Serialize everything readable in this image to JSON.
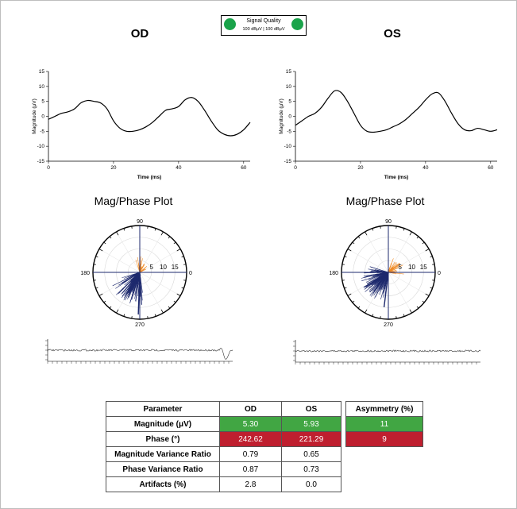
{
  "eyes": {
    "left": "OD",
    "right": "OS"
  },
  "signal_quality": {
    "label": "Signal Quality",
    "value": "100 dBμV  |  100 dBμV",
    "color": "#1aa34a"
  },
  "plot_titles": {
    "left": "Mag/Phase Plot",
    "right": "Mag/Phase Plot"
  },
  "chart_data": [
    {
      "type": "line",
      "eye": "OD",
      "xlabel": "Time (ms)",
      "ylabel": "Magnitude (μV)",
      "xlim": [
        0,
        62
      ],
      "ylim": [
        -15,
        15
      ],
      "xticks": [
        0,
        20,
        40,
        60
      ],
      "yticks": [
        15,
        10,
        5,
        0,
        -5,
        -10,
        -15
      ],
      "x": [
        0,
        2,
        4,
        6,
        8,
        10,
        12,
        14,
        16,
        18,
        20,
        22,
        24,
        26,
        28,
        30,
        32,
        34,
        36,
        38,
        40,
        42,
        44,
        46,
        48,
        50,
        52,
        54,
        56,
        58,
        60,
        62
      ],
      "y": [
        -1,
        0,
        1,
        1.5,
        2.5,
        4.5,
        5.3,
        5,
        4.5,
        2.5,
        -1.5,
        -4,
        -5,
        -5,
        -4.5,
        -3.5,
        -2,
        0,
        2,
        2.5,
        3.3,
        5.5,
        6.3,
        5,
        2,
        -1.5,
        -4.5,
        -6,
        -6.5,
        -6,
        -4.5,
        -2
      ],
      "color": "#000000"
    },
    {
      "type": "line",
      "eye": "OS",
      "xlabel": "Time (ms)",
      "ylabel": "Magnitude (μV)",
      "xlim": [
        0,
        62
      ],
      "ylim": [
        -15,
        15
      ],
      "xticks": [
        0,
        20,
        40,
        60
      ],
      "yticks": [
        15,
        10,
        5,
        0,
        -5,
        -10,
        -15
      ],
      "x": [
        0,
        2,
        4,
        6,
        8,
        10,
        12,
        14,
        16,
        18,
        20,
        22,
        24,
        26,
        28,
        30,
        32,
        34,
        36,
        38,
        40,
        42,
        44,
        46,
        48,
        50,
        52,
        54,
        56,
        58,
        60,
        62
      ],
      "y": [
        -3,
        -1.5,
        0,
        1,
        3,
        6,
        8.5,
        8,
        5,
        1,
        -3,
        -5,
        -5.3,
        -5,
        -4.5,
        -3.5,
        -2.5,
        -1,
        1,
        3,
        5.5,
        7.5,
        7.8,
        5,
        1,
        -2.5,
        -4.5,
        -4.8,
        -4,
        -4.5,
        -5,
        -4.5
      ],
      "color": "#000000"
    },
    {
      "type": "polar",
      "eye": "OD",
      "angle_labels": [
        "90",
        "0",
        "270",
        "180"
      ],
      "radial_ticks": [
        5,
        10,
        15
      ],
      "rmax": 20,
      "dominant_angle_deg": 268,
      "dominant_magnitude": 18,
      "navy_cluster": {
        "center_deg": 238,
        "spread_deg": 48,
        "max_r": 14,
        "count": 170,
        "color": "#1e2a6e"
      },
      "orange_cluster": {
        "center_deg": 70,
        "spread_deg": 55,
        "max_r": 7,
        "count": 35,
        "color": "#f08a24"
      }
    },
    {
      "type": "polar",
      "eye": "OS",
      "angle_labels": [
        "90",
        "0",
        "270",
        "180"
      ],
      "radial_ticks": [
        5,
        10,
        15
      ],
      "rmax": 20,
      "dominant_angle_deg": 263,
      "dominant_magnitude": 15,
      "navy_cluster": {
        "center_deg": 215,
        "spread_deg": 55,
        "max_r": 13,
        "count": 200,
        "color": "#1e2a6e"
      },
      "orange_cluster": {
        "center_deg": 40,
        "spread_deg": 60,
        "max_r": 7,
        "count": 40,
        "color": "#f08a24"
      }
    }
  ],
  "table": {
    "headers": [
      "Parameter",
      "OD",
      "OS",
      "Asymmetry (%)"
    ],
    "rows": [
      {
        "label": "Magnitude (μV)",
        "od": "5.30",
        "os": "5.93",
        "asym": "11",
        "status": "good"
      },
      {
        "label": "Phase (°)",
        "od": "242.62",
        "os": "221.29",
        "asym": "9",
        "status": "bad"
      },
      {
        "label": "Magnitude Variance Ratio",
        "od": "0.79",
        "os": "0.65"
      },
      {
        "label": "Phase Variance Ratio",
        "od": "0.87",
        "os": "0.73"
      },
      {
        "label": "Artifacts (%)",
        "od": "2.8",
        "os": "0.0"
      }
    ],
    "colors": {
      "good": "#41a643",
      "bad": "#bf1f2f"
    }
  }
}
